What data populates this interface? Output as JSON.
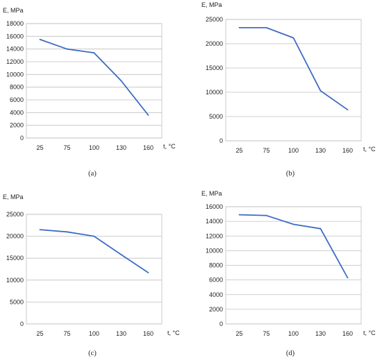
{
  "figure": {
    "captions": [
      "(a)",
      "(b)",
      "(c)",
      "(d)"
    ]
  },
  "chart_data": [
    {
      "id": "a",
      "type": "line",
      "title": "",
      "caption": "(a)",
      "xlabel": "t, °C",
      "ylabel": "E, MPa",
      "categories": [
        "25",
        "75",
        "100",
        "130",
        "160"
      ],
      "values": [
        15500,
        14000,
        13400,
        9000,
        3600
      ],
      "ylim": [
        0,
        18000
      ],
      "yticks": [
        0,
        2000,
        4000,
        6000,
        8000,
        10000,
        12000,
        14000,
        16000,
        18000
      ],
      "grid": "horizontal",
      "legend": "none",
      "line_color": "#3d6bc4"
    },
    {
      "id": "b",
      "type": "line",
      "title": "",
      "caption": "(b)",
      "xlabel": "t, °C",
      "ylabel": "E, MPa",
      "categories": [
        "25",
        "75",
        "100",
        "130",
        "160"
      ],
      "values": [
        23300,
        23300,
        21200,
        10300,
        6400
      ],
      "ylim": [
        0,
        25000
      ],
      "yticks": [
        0,
        5000,
        10000,
        15000,
        20000,
        25000
      ],
      "grid": "horizontal",
      "legend": "none",
      "line_color": "#3d6bc4"
    },
    {
      "id": "c",
      "type": "line",
      "title": "",
      "caption": "(c)",
      "xlabel": "t, °C",
      "ylabel": "E, MPa",
      "categories": [
        "25",
        "75",
        "100",
        "130",
        "160"
      ],
      "values": [
        21500,
        21000,
        20000,
        15800,
        11700
      ],
      "ylim": [
        0,
        25000
      ],
      "yticks": [
        0,
        5000,
        10000,
        15000,
        20000,
        25000
      ],
      "grid": "horizontal",
      "legend": "none",
      "line_color": "#3d6bc4"
    },
    {
      "id": "d",
      "type": "line",
      "title": "",
      "caption": "(d)",
      "xlabel": "t, °C",
      "ylabel": "E, MPa",
      "categories": [
        "25",
        "75",
        "100",
        "130",
        "160"
      ],
      "values": [
        14900,
        14800,
        13600,
        13000,
        6300
      ],
      "ylim": [
        0,
        16000
      ],
      "yticks": [
        0,
        2000,
        4000,
        6000,
        8000,
        10000,
        12000,
        14000,
        16000
      ],
      "grid": "horizontal",
      "legend": "none",
      "line_color": "#3d6bc4"
    }
  ]
}
